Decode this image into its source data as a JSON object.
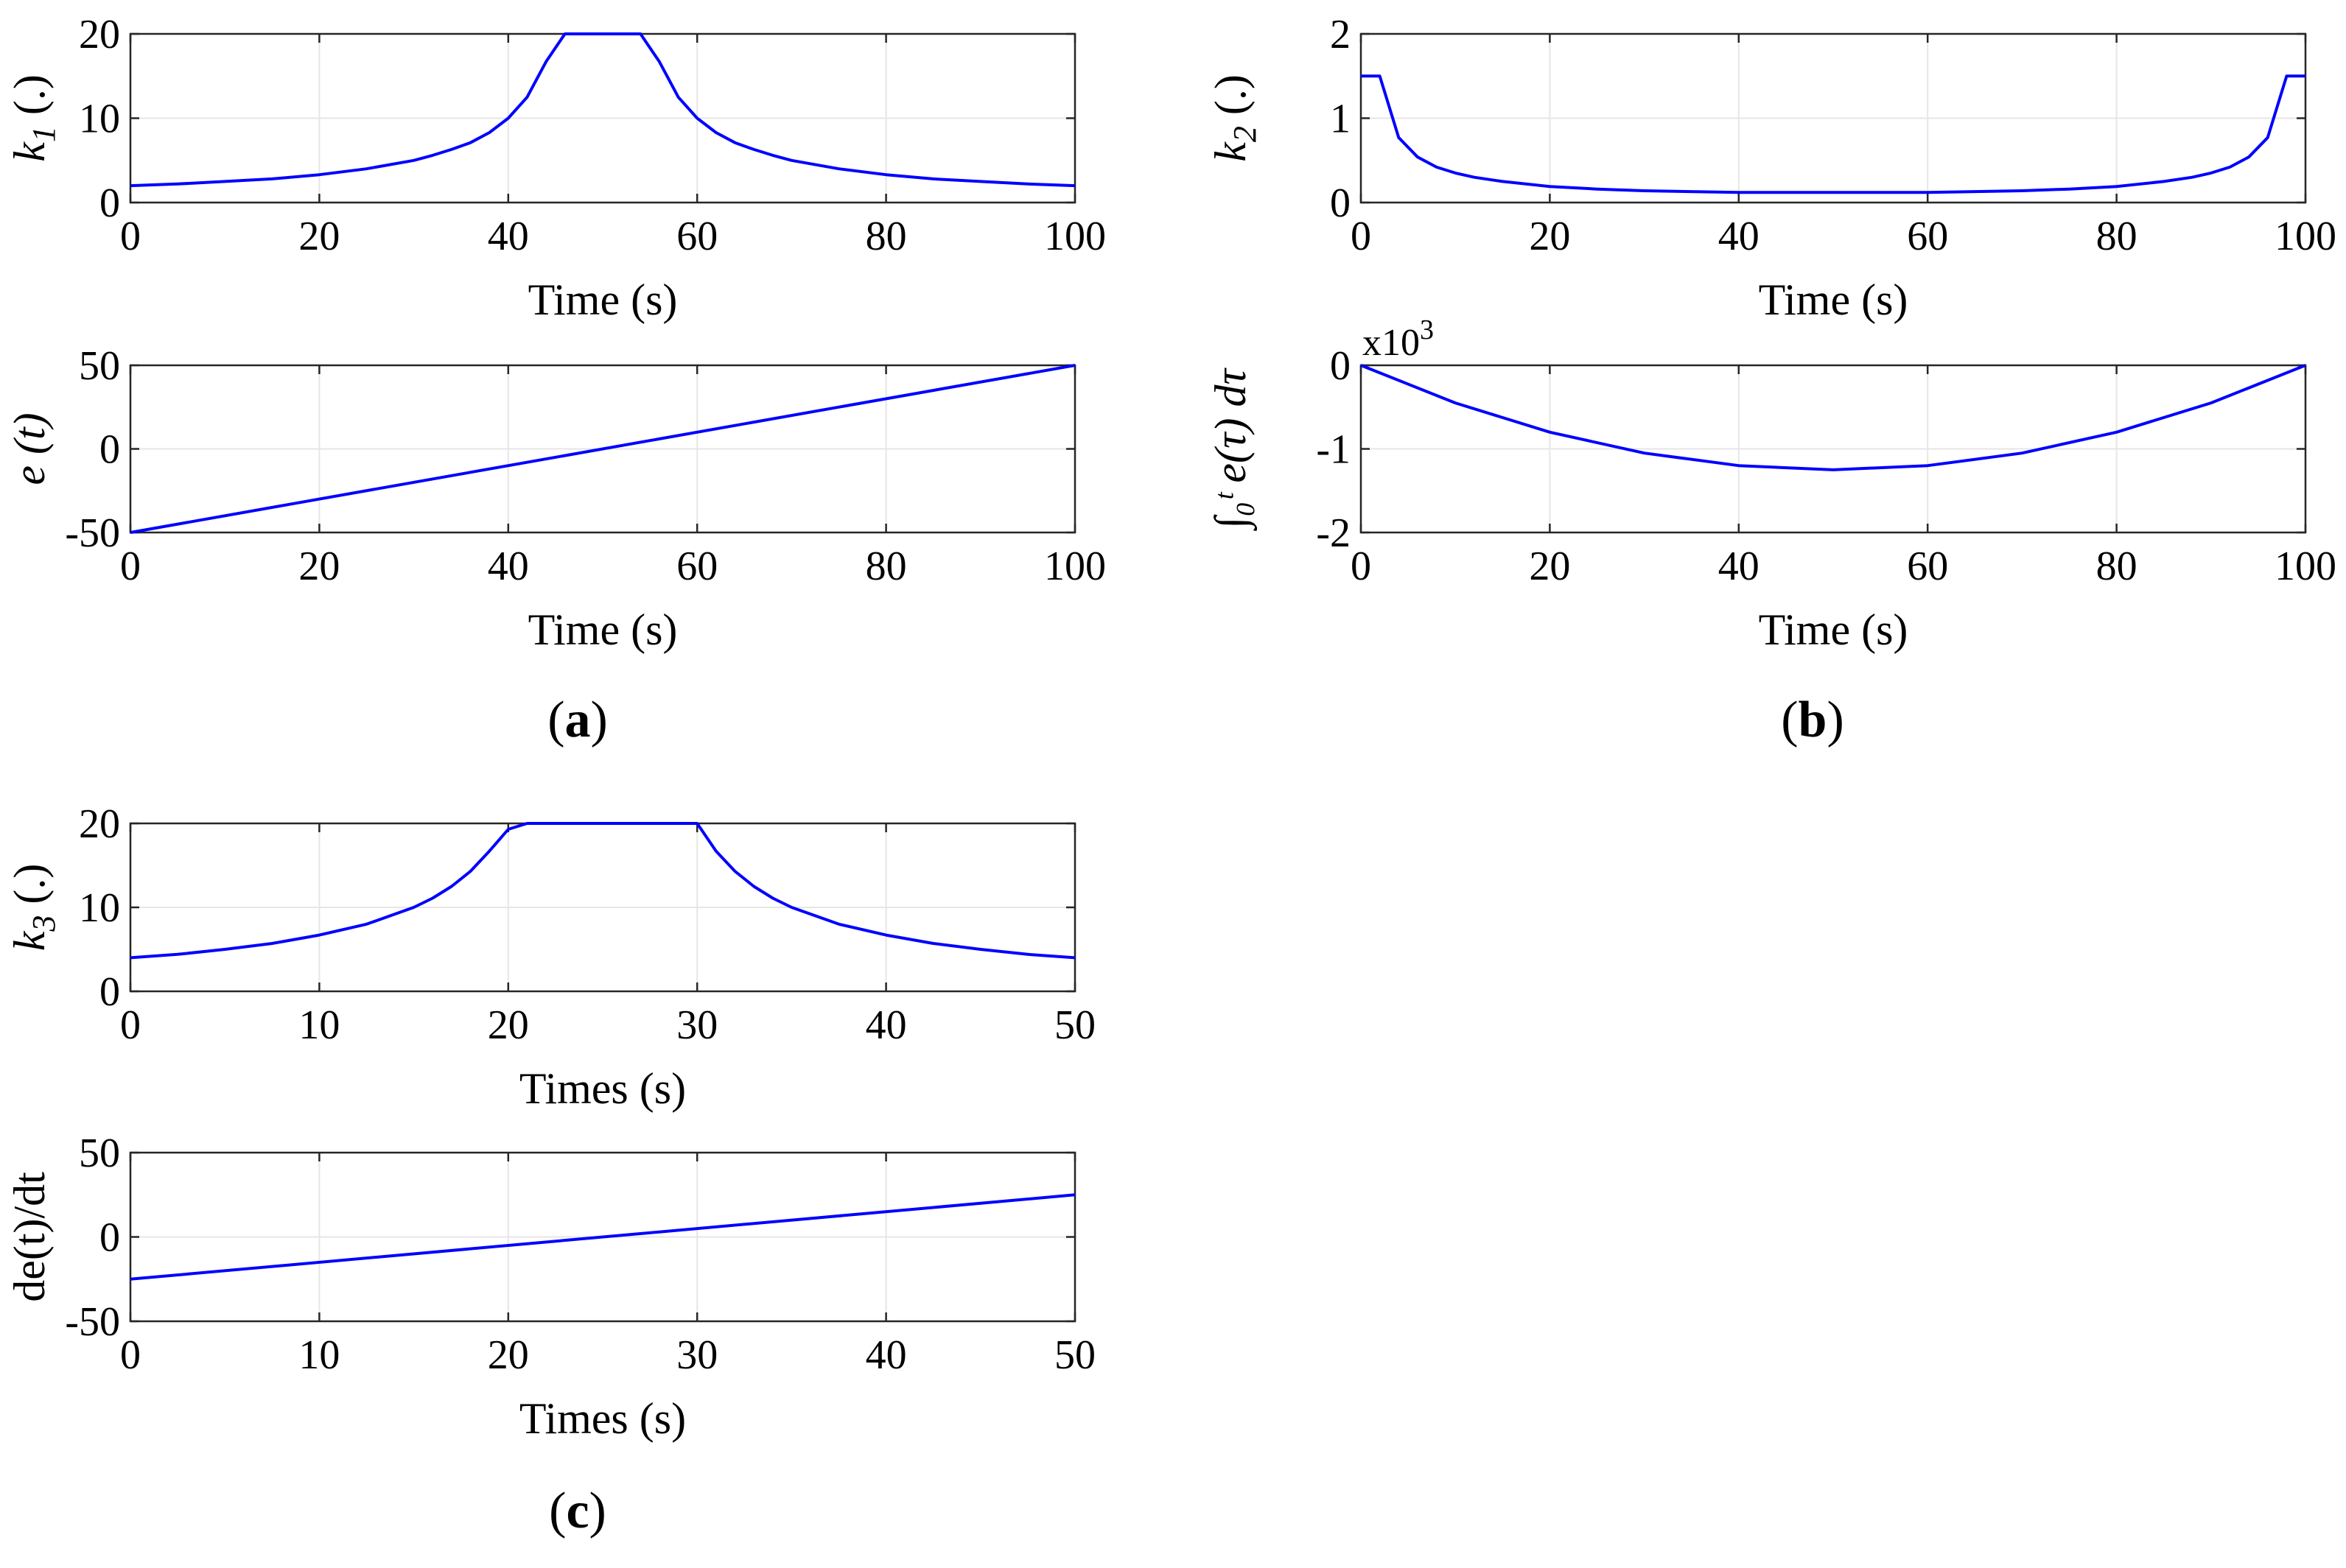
{
  "figure": {
    "captions": [
      "(a)",
      "(b)",
      "(c)"
    ],
    "line_color": "#0000ff",
    "grid_color": "#e6e6e6"
  },
  "chart_data": [
    {
      "id": "k1",
      "type": "line",
      "group": "a",
      "ylabel_main": "k",
      "ylabel_sub": "1",
      "ylabel_suffix": " (.)",
      "xlabel": "Time (s)",
      "xlim": [
        0,
        100
      ],
      "ylim": [
        0,
        20
      ],
      "xticks": [
        0,
        20,
        40,
        60,
        80,
        100
      ],
      "yticks": [
        0,
        10,
        20
      ],
      "grid": true,
      "series": [
        {
          "name": "k1",
          "x": [
            0,
            5,
            10,
            15,
            20,
            25,
            30,
            32,
            34,
            36,
            38,
            40,
            42,
            44,
            46,
            48,
            50,
            52,
            54,
            56,
            58,
            60,
            62,
            64,
            66,
            68,
            70,
            75,
            80,
            85,
            90,
            95,
            100
          ],
          "y": [
            2,
            2.2,
            2.5,
            2.8,
            3.3,
            4.0,
            5.0,
            5.6,
            6.3,
            7.1,
            8.3,
            10.0,
            12.5,
            16.7,
            20,
            20,
            20,
            20,
            20,
            16.7,
            12.5,
            10.0,
            8.3,
            7.1,
            6.3,
            5.6,
            5.0,
            4.0,
            3.3,
            2.8,
            2.5,
            2.2,
            2
          ]
        }
      ]
    },
    {
      "id": "e",
      "type": "line",
      "group": "a",
      "ylabel": "e  (t)",
      "xlabel": "Time (s)",
      "xlim": [
        0,
        100
      ],
      "ylim": [
        -50,
        50
      ],
      "xticks": [
        0,
        20,
        40,
        60,
        80,
        100
      ],
      "yticks": [
        -50,
        0,
        50
      ],
      "grid": true,
      "series": [
        {
          "name": "e",
          "x": [
            0,
            100
          ],
          "y": [
            -50,
            50
          ]
        }
      ]
    },
    {
      "id": "k2",
      "type": "line",
      "group": "b",
      "ylabel_main": "k",
      "ylabel_sub": "2",
      "ylabel_suffix": " (.)",
      "xlabel": "Time (s)",
      "xlim": [
        0,
        100
      ],
      "ylim": [
        0,
        2
      ],
      "xticks": [
        0,
        20,
        40,
        60,
        80,
        100
      ],
      "yticks": [
        0,
        1,
        2
      ],
      "grid": true,
      "series": [
        {
          "name": "k2",
          "x": [
            0,
            2,
            4,
            6,
            8,
            10,
            12,
            15,
            20,
            25,
            30,
            40,
            50,
            60,
            70,
            75,
            80,
            85,
            88,
            90,
            92,
            94,
            96,
            98,
            100
          ],
          "y": [
            1.5,
            1.5,
            0.77,
            0.54,
            0.42,
            0.35,
            0.3,
            0.25,
            0.19,
            0.16,
            0.14,
            0.12,
            0.12,
            0.12,
            0.14,
            0.16,
            0.19,
            0.25,
            0.3,
            0.35,
            0.42,
            0.54,
            0.77,
            1.5,
            1.5
          ]
        }
      ]
    },
    {
      "id": "int_e",
      "type": "line",
      "group": "b",
      "ylabel": "∫₀ᵗ  e(τ) dτ",
      "multiplier": "x10",
      "multiplier_exp": "3",
      "xlabel": "Time (s)",
      "xlim": [
        0,
        100
      ],
      "ylim": [
        -2,
        0
      ],
      "xticks": [
        0,
        20,
        40,
        60,
        80,
        100
      ],
      "yticks": [
        -2,
        -1,
        0
      ],
      "grid": true,
      "series": [
        {
          "name": "integral",
          "x": [
            0,
            10,
            20,
            30,
            40,
            50,
            60,
            70,
            80,
            90,
            100
          ],
          "y": [
            0,
            -0.45,
            -0.8,
            -1.05,
            -1.2,
            -1.25,
            -1.2,
            -1.05,
            -0.8,
            -0.45,
            0
          ]
        }
      ]
    },
    {
      "id": "k3",
      "type": "line",
      "group": "c",
      "ylabel_main": "k",
      "ylabel_sub": "3",
      "ylabel_suffix": " (.)",
      "xlabel": "Times (s)",
      "xlim": [
        0,
        50
      ],
      "ylim": [
        0,
        20
      ],
      "xticks": [
        0,
        10,
        20,
        30,
        40,
        50
      ],
      "yticks": [
        0,
        10,
        20
      ],
      "grid": true,
      "series": [
        {
          "name": "k3",
          "x": [
            0,
            2.5,
            5,
            7.5,
            10,
            12.5,
            15,
            16,
            17,
            18,
            19,
            20,
            21,
            22,
            25,
            28,
            29,
            30,
            31,
            32,
            33,
            34,
            35,
            37.5,
            40,
            42.5,
            45,
            47.5,
            50
          ],
          "y": [
            4,
            4.4,
            5.0,
            5.7,
            6.7,
            8.0,
            10.0,
            11.1,
            12.5,
            14.3,
            16.7,
            19.3,
            20,
            20,
            20,
            20,
            20,
            20,
            16.7,
            14.3,
            12.5,
            11.1,
            10.0,
            8.0,
            6.7,
            5.7,
            5.0,
            4.4,
            4
          ]
        }
      ]
    },
    {
      "id": "de",
      "type": "line",
      "group": "c",
      "ylabel": "de(t)/dt",
      "xlabel": "Times (s)",
      "xlim": [
        0,
        50
      ],
      "ylim": [
        -50,
        50
      ],
      "xticks": [
        0,
        10,
        20,
        30,
        40,
        50
      ],
      "yticks": [
        -50,
        0,
        50
      ],
      "grid": true,
      "series": [
        {
          "name": "de",
          "x": [
            0,
            50
          ],
          "y": [
            -25,
            25
          ]
        }
      ]
    }
  ]
}
